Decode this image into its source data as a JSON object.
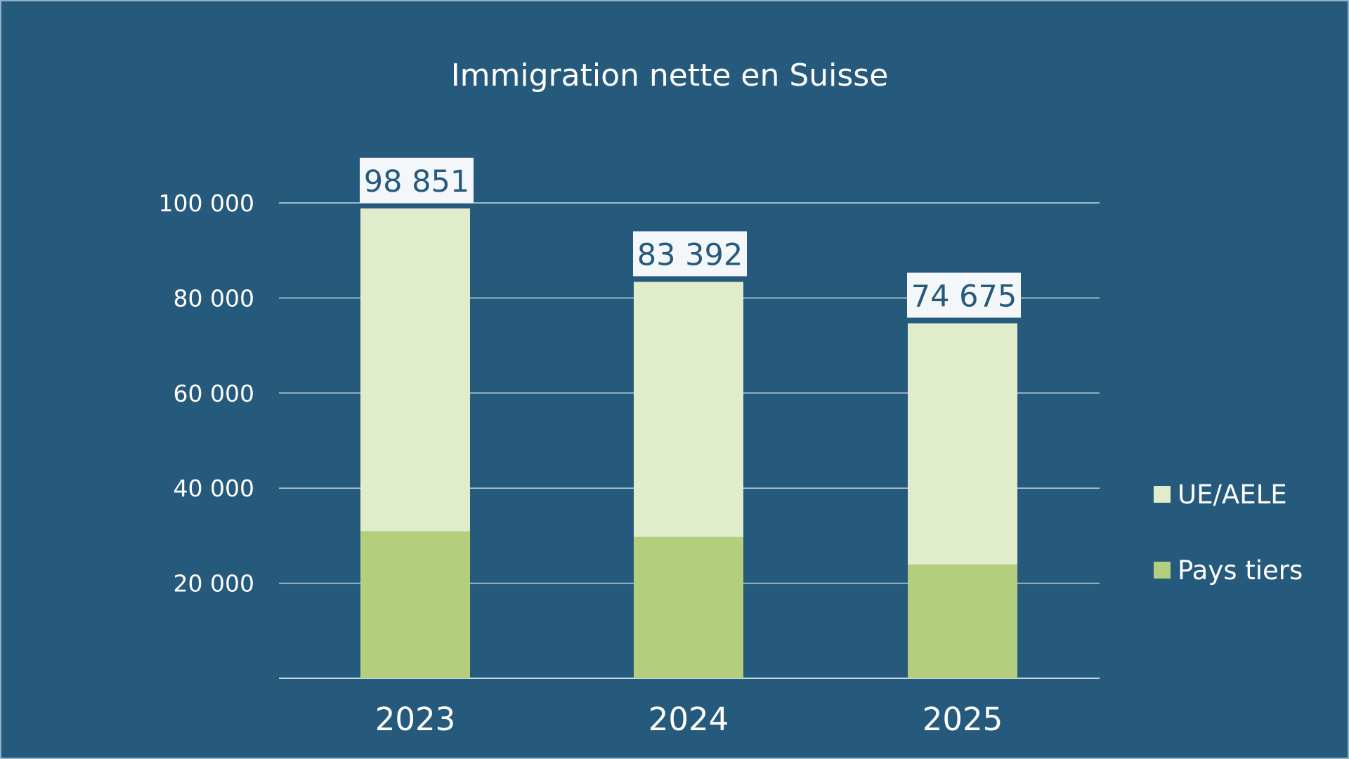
{
  "chart_data": {
    "type": "bar",
    "stacked": true,
    "title": "Immigration nette en Suisse",
    "xlabel": "",
    "ylabel": "",
    "categories": [
      "2023",
      "2024",
      "2025"
    ],
    "series": [
      {
        "name": "Pays tiers",
        "values": [
          30900,
          29700,
          23900
        ],
        "color": "#b3cf7e"
      },
      {
        "name": "UE/AELE",
        "values": [
          67951,
          53692,
          50775
        ],
        "color": "#e1ecca"
      }
    ],
    "totals": [
      98851,
      83392,
      74675
    ],
    "total_labels": [
      "98 851",
      "83 392",
      "74 675"
    ],
    "ylim": [
      0,
      100000
    ],
    "yticks": [
      20000,
      40000,
      60000,
      80000,
      100000
    ],
    "ytick_labels": [
      "20 000",
      "40 000",
      "60 000",
      "80 000",
      "100 000"
    ],
    "grid": true,
    "legend": {
      "placement": "right",
      "entries": [
        "UE/AELE",
        "Pays tiers"
      ]
    },
    "colors": {
      "background": "#265a7c",
      "grid": "#c9d6df",
      "label_box": "#f4f7fa",
      "label_text": "#265a7c"
    }
  }
}
